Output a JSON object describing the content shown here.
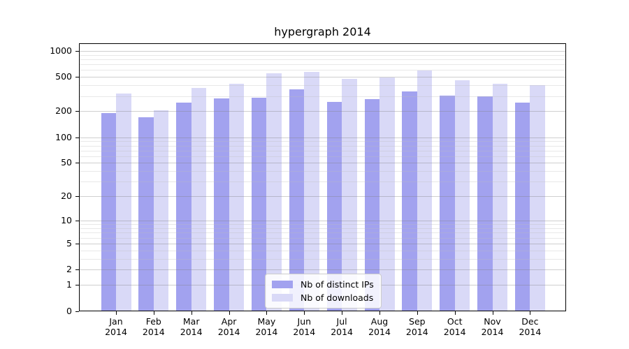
{
  "title": "hypergraph 2014",
  "colors": {
    "ips_bar": "#a2a2ef",
    "downloads_bar": "#d9d9f7",
    "grid_major": "rgba(130,130,130,0.38)",
    "grid_minor": "rgba(190,190,190,0.35)",
    "axis": "#000000",
    "legend_border": "#cccccc"
  },
  "legend": {
    "items": [
      {
        "label": "Nb of distinct IPs",
        "color_key": "ips_bar"
      },
      {
        "label": "Nb of downloads",
        "color_key": "downloads_bar"
      }
    ]
  },
  "chart_data": {
    "type": "bar",
    "title": "hypergraph 2014",
    "categories": [
      "Jan 2014",
      "Feb 2014",
      "Mar 2014",
      "Apr 2014",
      "May 2014",
      "Jun 2014",
      "Jul 2014",
      "Aug 2014",
      "Sep 2014",
      "Oct 2014",
      "Nov 2014",
      "Dec 2014"
    ],
    "series": [
      {
        "name": "Nb of distinct IPs",
        "values": [
          188,
          168,
          252,
          280,
          286,
          358,
          257,
          275,
          338,
          300,
          294,
          252
        ]
      },
      {
        "name": "Nb of downloads",
        "values": [
          318,
          204,
          370,
          415,
          548,
          566,
          467,
          485,
          590,
          457,
          416,
          400
        ]
      }
    ],
    "xlabel": "",
    "ylabel": "",
    "y_scale": "log1p (position proportional to log10(1+value), 0 at baseline)",
    "y_ticks": [
      0,
      1,
      2,
      5,
      10,
      20,
      50,
      100,
      200,
      500,
      1000
    ],
    "ylim": [
      0,
      1220
    ],
    "grid": "horizontal major + minor, drawn over bars",
    "legend_position": "lower center inside plot"
  }
}
